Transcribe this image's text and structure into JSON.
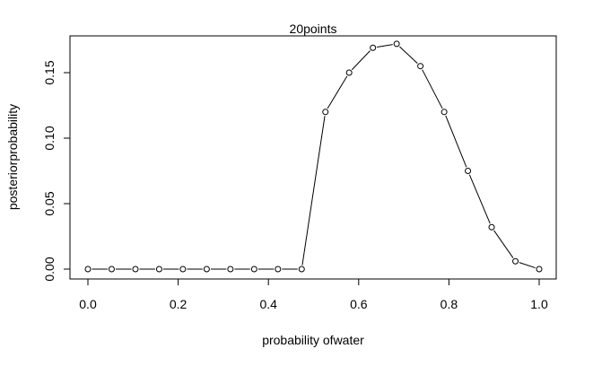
{
  "chart_data": {
    "type": "line",
    "title": "20points",
    "xlabel": "probability ofwater",
    "ylabel": "posteriorprobability",
    "xlim": [
      0.0,
      1.0
    ],
    "ylim": [
      0.0,
      0.172
    ],
    "xticks": [
      0.0,
      0.2,
      0.4,
      0.6,
      0.8,
      1.0
    ],
    "xtick_labels": [
      "0.0",
      "0.2",
      "0.4",
      "0.6",
      "0.8",
      "1.0"
    ],
    "yticks": [
      0.0,
      0.05,
      0.1,
      0.15
    ],
    "ytick_labels": [
      "0.00",
      "0.05",
      "0.10",
      "0.15"
    ],
    "grid": false,
    "markers": "open-circle",
    "series": [
      {
        "x": [
          0.0,
          0.0526,
          0.1053,
          0.1579,
          0.2105,
          0.2632,
          0.3158,
          0.3684,
          0.4211,
          0.4737,
          0.5263,
          0.5789,
          0.6316,
          0.6842,
          0.7368,
          0.7895,
          0.8421,
          0.8947,
          0.9474,
          1.0
        ],
        "y": [
          0.0,
          0.0,
          0.0,
          0.0,
          0.0,
          0.0,
          0.0,
          0.0,
          0.0,
          0.0,
          0.12,
          0.15,
          0.169,
          0.172,
          0.155,
          0.12,
          0.075,
          0.032,
          0.006,
          0.0
        ]
      }
    ]
  }
}
